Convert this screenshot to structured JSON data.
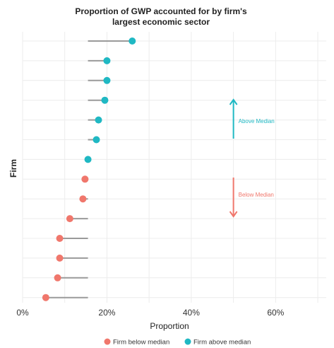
{
  "chart_data": {
    "type": "lollipop",
    "title": [
      "Proportion of GWP accounted for by firm's",
      "largest economic sector"
    ],
    "xlabel": "Proportion",
    "ylabel": "Firm",
    "xlim": [
      0,
      0.72
    ],
    "x_ticks": [
      0,
      0.2,
      0.4,
      0.6
    ],
    "x_tick_labels": [
      "0%",
      "20%",
      "40%",
      "60%"
    ],
    "median": 0.155,
    "grid": true,
    "y_tick_labels_shown": false,
    "colors": {
      "above": "#1fb8c3",
      "below": "#f0776c",
      "stem": "#9a9a9a"
    },
    "series": [
      {
        "name": "Firm above median",
        "group": "above",
        "values": [
          0.26,
          0.2,
          0.2,
          0.195,
          0.18,
          0.175,
          0.155
        ]
      },
      {
        "name": "Firm below median",
        "group": "below",
        "values": [
          0.148,
          0.143,
          0.112,
          0.088,
          0.088,
          0.083,
          0.055
        ]
      }
    ],
    "annotations": [
      {
        "text": "Above Median",
        "direction": "up",
        "color": "#1fb8c3"
      },
      {
        "text": "Below Median",
        "direction": "down",
        "color": "#f0776c"
      }
    ],
    "legend": {
      "position": "bottom",
      "entries": [
        {
          "label": "Firm below median",
          "group": "below"
        },
        {
          "label": "Firm above median",
          "group": "above"
        }
      ]
    }
  }
}
